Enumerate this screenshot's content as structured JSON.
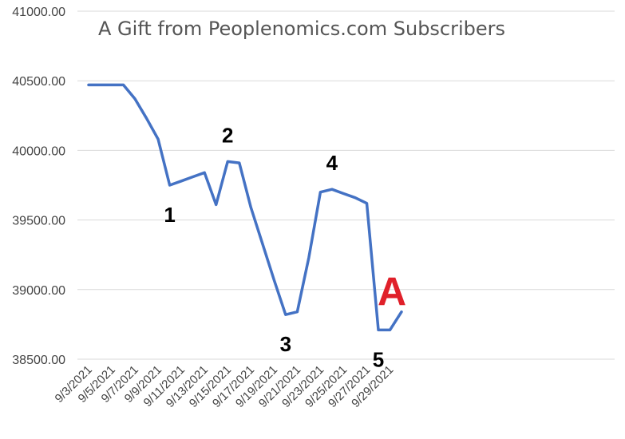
{
  "chart_data": {
    "type": "line",
    "title": "A Gift from Peoplenomics.com Subscribers",
    "xlabel": "",
    "ylabel": "",
    "ylim": [
      38500,
      41000
    ],
    "y_ticks": [
      "38500.00",
      "39000.00",
      "39500.00",
      "40000.00",
      "40500.00",
      "41000.00"
    ],
    "x_tick_labels": [
      "9/3/2021",
      "9/5/2021",
      "9/7/2021",
      "9/9/2021",
      "9/11/2021",
      "9/13/2021",
      "9/15/2021",
      "9/17/2021",
      "9/19/2021",
      "9/21/2021",
      "9/23/2021",
      "9/25/2021",
      "9/27/2021",
      "9/29/2021"
    ],
    "grid": "horizontal",
    "line_color": "#4472c4",
    "series": [
      {
        "x": [
          "9/3/2021",
          "9/4/2021",
          "9/5/2021",
          "9/6/2021",
          "9/7/2021",
          "9/8/2021",
          "9/9/2021",
          "9/10/2021",
          "9/11/2021",
          "9/12/2021",
          "9/13/2021",
          "9/14/2021",
          "9/15/2021",
          "9/16/2021",
          "9/17/2021",
          "9/18/2021",
          "9/19/2021",
          "9/20/2021",
          "9/21/2021",
          "9/22/2021",
          "9/23/2021",
          "9/24/2021",
          "9/25/2021",
          "9/26/2021",
          "9/27/2021",
          "9/28/2021",
          "9/29/2021",
          "9/30/2021"
        ],
        "values": [
          40470,
          40470,
          40470,
          40470,
          40370,
          40230,
          40080,
          39750,
          39780,
          39810,
          39840,
          39610,
          39920,
          39910,
          39590,
          39330,
          39070,
          38820,
          38840,
          39230,
          39700,
          39720,
          39690,
          39660,
          39620,
          38710,
          38710,
          38840
        ]
      }
    ],
    "annotations": [
      {
        "label": "1",
        "x": "9/10/2021",
        "y": 39750,
        "position": "below",
        "color": "#000000"
      },
      {
        "label": "2",
        "x": "9/15/2021",
        "y": 39920,
        "position": "above",
        "color": "#000000"
      },
      {
        "label": "3",
        "x": "9/20/2021",
        "y": 38820,
        "position": "below",
        "color": "#000000"
      },
      {
        "label": "4",
        "x": "9/24/2021",
        "y": 39720,
        "position": "above",
        "color": "#000000"
      },
      {
        "label": "5",
        "x": "9/28/2021",
        "y": 38710,
        "position": "below",
        "color": "#000000"
      },
      {
        "label": "A",
        "x": "9/30/2021",
        "y": 38840,
        "position": "above",
        "color": "#e0202a"
      }
    ]
  }
}
